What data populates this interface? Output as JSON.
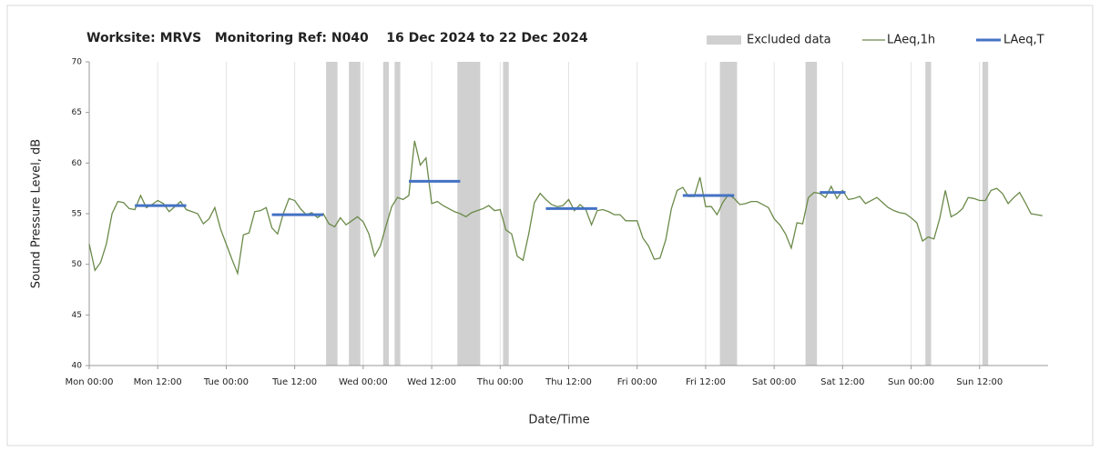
{
  "chart_data": {
    "type": "line",
    "title": "Worksite: MRVS   Monitoring Ref: N040    16 Dec 2024 to 22 Dec 2024",
    "y_label": "Sound Pressure Level, dB",
    "x_label": "Date/Time",
    "xlim": [
      0,
      168
    ],
    "ylim": [
      40,
      70
    ],
    "yticks": [
      40,
      45,
      50,
      55,
      60,
      65,
      70
    ],
    "xticks": [
      {
        "value": 0,
        "label": "Mon 00:00"
      },
      {
        "value": 12,
        "label": "Mon 12:00"
      },
      {
        "value": 24,
        "label": "Tue 00:00"
      },
      {
        "value": 36,
        "label": "Tue 12:00"
      },
      {
        "value": 48,
        "label": "Wed 00:00"
      },
      {
        "value": 60,
        "label": "Wed 12:00"
      },
      {
        "value": 72,
        "label": "Thu 00:00"
      },
      {
        "value": 84,
        "label": "Thu 12:00"
      },
      {
        "value": 96,
        "label": "Fri 00:00"
      },
      {
        "value": 108,
        "label": "Fri 12:00"
      },
      {
        "value": 120,
        "label": "Sat 00:00"
      },
      {
        "value": 132,
        "label": "Sat 12:00"
      },
      {
        "value": 144,
        "label": "Sun 00:00"
      },
      {
        "value": 156,
        "label": "Sun 12:00"
      }
    ],
    "grid": true,
    "excluded": {
      "name": "Excluded data",
      "color": "#d0d0d0",
      "ranges": [
        [
          41.5,
          43.5
        ],
        [
          45.5,
          47.5
        ],
        [
          51.5,
          52.5
        ],
        [
          53.5,
          54.5
        ],
        [
          64.5,
          68.5
        ],
        [
          72.5,
          73.5
        ],
        [
          110.5,
          113.5
        ],
        [
          125.5,
          127.5
        ],
        [
          146.5,
          147.5
        ],
        [
          156.5,
          157.5
        ]
      ]
    },
    "x": [
      0,
      1,
      2,
      3,
      4,
      5,
      6,
      7,
      8,
      9,
      10,
      11,
      12,
      13,
      14,
      15,
      16,
      17,
      18,
      19,
      20,
      21,
      22,
      23,
      24,
      25,
      26,
      27,
      28,
      29,
      30,
      31,
      32,
      33,
      34,
      35,
      36,
      37,
      38,
      39,
      40,
      41,
      42,
      43,
      44,
      45,
      46,
      47,
      48,
      49,
      50,
      51,
      52,
      53,
      54,
      55,
      56,
      57,
      58,
      59,
      60,
      61,
      62,
      63,
      64,
      65,
      66,
      67,
      68,
      69,
      70,
      71,
      72,
      73,
      74,
      75,
      76,
      77,
      78,
      79,
      80,
      81,
      82,
      83,
      84,
      85,
      86,
      87,
      88,
      89,
      90,
      91,
      92,
      93,
      94,
      95,
      96,
      97,
      98,
      99,
      100,
      101,
      102,
      103,
      104,
      105,
      106,
      107,
      108,
      109,
      110,
      111,
      112,
      113,
      114,
      115,
      116,
      117,
      118,
      119,
      120,
      121,
      122,
      123,
      124,
      125,
      126,
      127,
      128,
      129,
      130,
      131,
      132,
      133,
      134,
      135,
      136,
      137,
      138,
      139,
      140,
      141,
      142,
      143,
      144,
      145,
      146,
      147,
      148,
      149,
      150,
      151,
      152,
      153,
      154,
      155,
      156,
      157,
      158,
      159,
      160,
      161,
      162,
      163,
      164,
      165,
      166,
      167
    ],
    "series": [
      {
        "name": "LAeq,1h",
        "color": "#6b8a4a",
        "values": [
          52,
          49.4,
          50.2,
          52,
          55,
          56.2,
          56.1,
          55.5,
          55.4,
          56.8,
          55.6,
          55.9,
          56.3,
          56,
          55.2,
          55.7,
          56.2,
          55.4,
          55.2,
          55,
          54,
          54.5,
          55.6,
          53.5,
          52,
          50.5,
          49.1,
          52.9,
          53.1,
          55.2,
          55.3,
          55.6,
          53.6,
          53,
          55,
          56.5,
          56.3,
          55.5,
          54.9,
          55.1,
          54.6,
          55,
          54,
          53.7,
          54.6,
          53.9,
          54.3,
          54.7,
          54.2,
          53,
          50.8,
          51.8,
          53.8,
          55.7,
          56.6,
          56.4,
          56.8,
          62.2,
          59.8,
          60.5,
          56,
          56.2,
          55.8,
          55.5,
          55.2,
          55,
          54.7,
          55.1,
          55.3,
          55.5,
          55.8,
          55.3,
          55.4,
          53.4,
          53,
          50.8,
          50.4,
          53,
          56.1,
          57,
          56.4,
          55.9,
          55.7,
          55.8,
          56.4,
          55.3,
          55.9,
          55.4,
          53.9,
          55.3,
          55.4,
          55.2,
          54.9,
          54.9,
          54.3,
          54.3,
          54.3,
          52.6,
          51.8,
          50.5,
          50.6,
          52.4,
          55.5,
          57.3,
          57.6,
          56.7,
          56.7,
          58.6,
          55.7,
          55.7,
          54.9,
          56.1,
          56.9,
          56.5,
          55.9,
          56,
          56.2,
          56.2,
          55.9,
          55.6,
          54.5,
          53.9,
          53,
          51.6,
          54.1,
          54,
          56.6,
          57.1,
          57,
          56.6,
          57.7,
          56.5,
          57.3,
          56.4,
          56.5,
          56.7,
          56,
          56.3,
          56.6,
          56.1,
          55.6,
          55.3,
          55.1,
          55,
          54.6,
          54.1,
          52.3,
          52.7,
          52.5,
          54.5,
          57.3,
          54.7,
          55,
          55.5,
          56.6,
          56.5,
          56.3,
          56.3,
          57.3,
          57.5,
          57,
          56,
          56.6,
          57.1,
          56.1,
          55,
          54.9,
          54.8
        ]
      }
    ],
    "periods": {
      "name": "LAeq,T",
      "color": "#4472c4",
      "starts": [
        8,
        32,
        56,
        80,
        104,
        128
      ],
      "ends": [
        17,
        41,
        65,
        89,
        113,
        132.5
      ],
      "values": [
        55.8,
        54.9,
        58.2,
        55.5,
        56.8,
        57.1
      ]
    }
  }
}
